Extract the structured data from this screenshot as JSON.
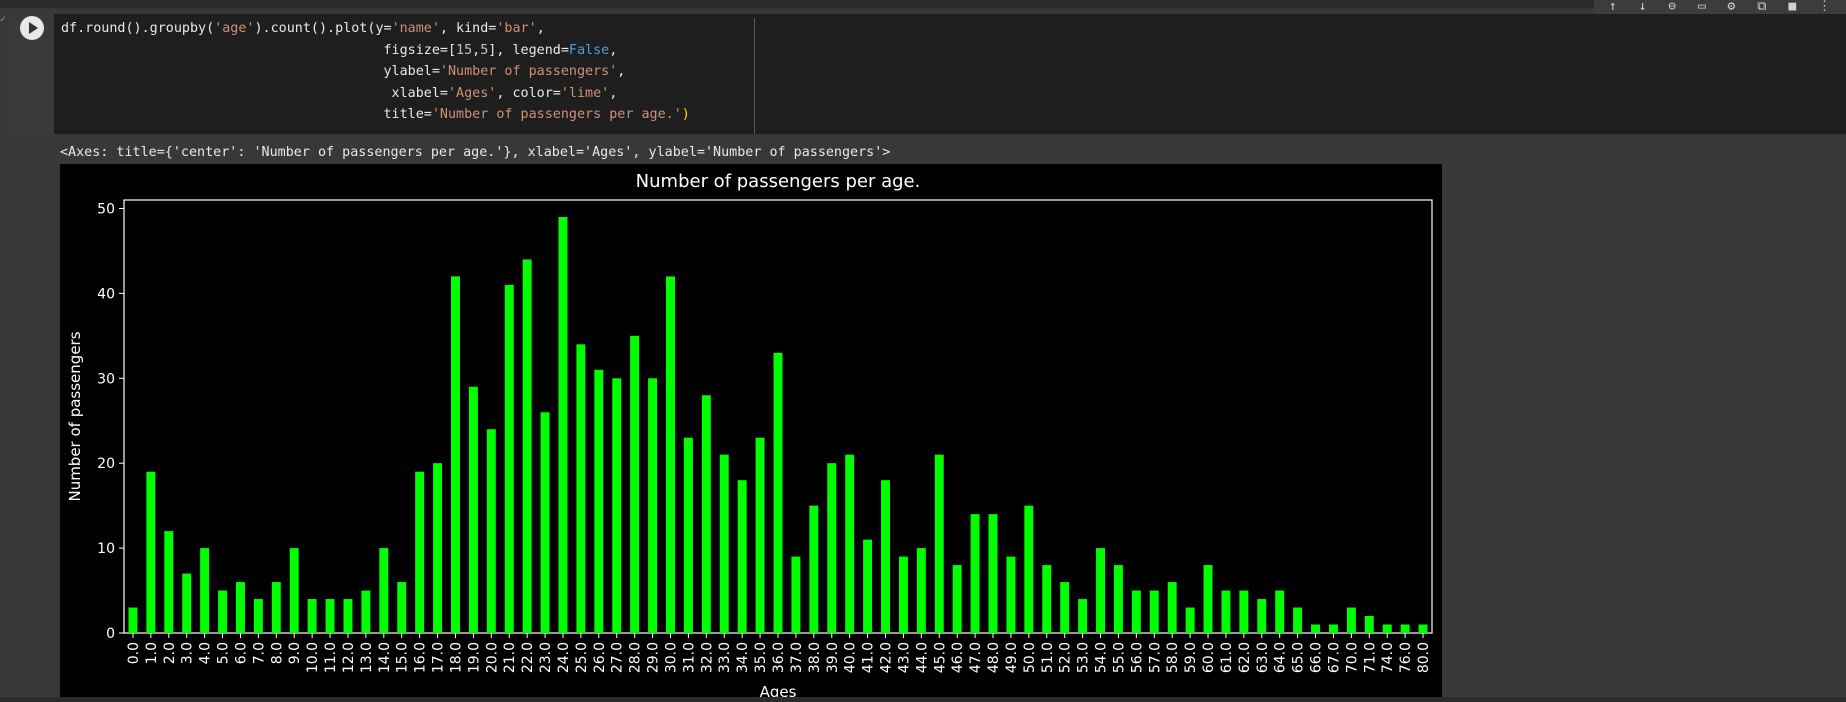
{
  "code_lines": [
    [
      [
        "df.round().groupby(",
        ""
      ],
      [
        "'age'",
        "s"
      ],
      [
        ").count().plot(",
        ""
      ],
      [
        "y=",
        ""
      ],
      [
        "'name'",
        "s"
      ],
      [
        ", kind=",
        ""
      ],
      [
        "'bar'",
        "s"
      ],
      [
        ",",
        ""
      ]
    ],
    [
      [
        "                                        figsize=[",
        ""
      ],
      [
        "15",
        "n"
      ],
      [
        ",",
        ""
      ],
      [
        "5",
        "n"
      ],
      [
        "], legend=",
        ""
      ],
      [
        "False",
        "k"
      ],
      [
        ",",
        ""
      ]
    ],
    [
      [
        "                                        ylabel=",
        ""
      ],
      [
        "'Number of passengers'",
        "s"
      ],
      [
        ",",
        ""
      ]
    ],
    [
      [
        "                                         xlabel=",
        ""
      ],
      [
        "'Ages'",
        "s"
      ],
      [
        ", color=",
        ""
      ],
      [
        "'lime'",
        "s"
      ],
      [
        ",",
        ""
      ]
    ],
    [
      [
        "                                        title=",
        ""
      ],
      [
        "'Number of passengers per age.'",
        "s"
      ],
      [
        ")",
        "p"
      ]
    ]
  ],
  "output_text": "<Axes: title={'center': 'Number of passengers per age.'}, xlabel='Ages', ylabel='Number of passengers'>",
  "toolbar_icons": [
    "arrow-up-icon",
    "arrow-down-icon",
    "link-icon",
    "comment-icon",
    "gear-icon",
    "mirror-cell-icon",
    "trash-icon",
    "more-vert-icon"
  ],
  "colors": {
    "bar": "#00ff00",
    "figure_bg": "#000000",
    "axes_fg": "#ffffff"
  },
  "chart_data": {
    "type": "bar",
    "title": "Number of passengers per age.",
    "xlabel": "Ages",
    "ylabel": "Number of passengers",
    "ylim": [
      0,
      51
    ],
    "yticks": [
      0,
      10,
      20,
      30,
      40,
      50
    ],
    "legend": false,
    "grid": false,
    "categories": [
      "0.0",
      "1.0",
      "2.0",
      "3.0",
      "4.0",
      "5.0",
      "6.0",
      "7.0",
      "8.0",
      "9.0",
      "10.0",
      "11.0",
      "12.0",
      "13.0",
      "14.0",
      "15.0",
      "16.0",
      "17.0",
      "18.0",
      "19.0",
      "20.0",
      "21.0",
      "22.0",
      "23.0",
      "24.0",
      "25.0",
      "26.0",
      "27.0",
      "28.0",
      "29.0",
      "30.0",
      "31.0",
      "32.0",
      "33.0",
      "34.0",
      "35.0",
      "36.0",
      "37.0",
      "38.0",
      "39.0",
      "40.0",
      "41.0",
      "42.0",
      "43.0",
      "44.0",
      "45.0",
      "46.0",
      "47.0",
      "48.0",
      "49.0",
      "50.0",
      "51.0",
      "52.0",
      "53.0",
      "54.0",
      "55.0",
      "56.0",
      "57.0",
      "58.0",
      "59.0",
      "60.0",
      "61.0",
      "62.0",
      "63.0",
      "64.0",
      "65.0",
      "66.0",
      "67.0",
      "70.0",
      "71.0",
      "74.0",
      "76.0",
      "80.0"
    ],
    "values": [
      3,
      19,
      12,
      7,
      10,
      5,
      6,
      4,
      6,
      10,
      4,
      4,
      4,
      5,
      10,
      6,
      19,
      20,
      42,
      29,
      24,
      41,
      44,
      26,
      49,
      34,
      31,
      30,
      35,
      30,
      42,
      23,
      28,
      21,
      18,
      23,
      33,
      9,
      15,
      20,
      21,
      11,
      18,
      9,
      10,
      21,
      8,
      14,
      14,
      9,
      15,
      8,
      6,
      4,
      10,
      8,
      5,
      5,
      6,
      3,
      8,
      5,
      5,
      4,
      5,
      3,
      1,
      1,
      3,
      2,
      1,
      1,
      1
    ]
  }
}
